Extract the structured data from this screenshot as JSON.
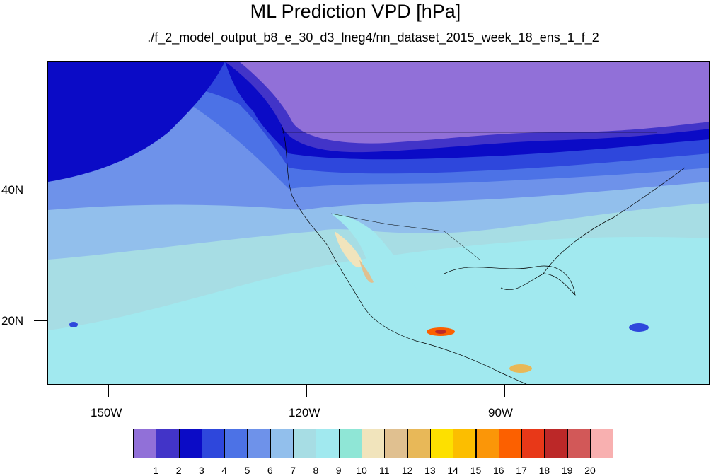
{
  "header": {
    "title": "ML Prediction VPD [hPa]",
    "subtitle": "./f_2_model_output_b8_e_30_d3_lneg4/nn_dataset_2015_week_18_ens_1_f_2"
  },
  "map": {
    "lon_range": [
      -163,
      -63
    ],
    "lat_range": [
      10,
      59
    ],
    "lat_labels": [
      "40N",
      "20N"
    ],
    "lon_labels": [
      "150W",
      "120W",
      "90W"
    ]
  },
  "colorbar": {
    "labels": [
      "1",
      "2",
      "3",
      "4",
      "5",
      "6",
      "7",
      "8",
      "9",
      "10",
      "11",
      "12",
      "13",
      "14",
      "15",
      "16",
      "17",
      "18",
      "19",
      "20"
    ],
    "colors": [
      "#9170d8",
      "#4234c8",
      "#0b0bc6",
      "#2e47dc",
      "#4c72e6",
      "#6e92ea",
      "#92bfec",
      "#a7dde4",
      "#a1e9ef",
      "#8fe6d6",
      "#f1e4bc",
      "#e0c090",
      "#e8b858",
      "#fde000",
      "#fcbe00",
      "#fb9608",
      "#fc6000",
      "#e83818",
      "#bc2828",
      "#d25858",
      "#f8b0b0"
    ]
  }
}
